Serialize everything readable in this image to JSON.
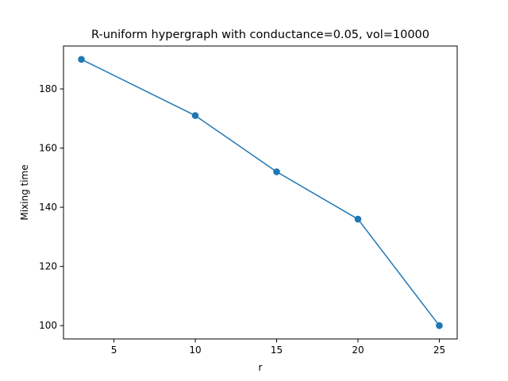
{
  "chart_data": {
    "type": "line",
    "title": "R-uniform hypergraph with conductance=0.05, vol=10000",
    "xlabel": "r",
    "ylabel": "Mixing time",
    "x": [
      3,
      10,
      15,
      20,
      25
    ],
    "series": [
      {
        "values": [
          190,
          171,
          152,
          136,
          100
        ]
      }
    ],
    "xlim": [
      1.9,
      26.1
    ],
    "ylim": [
      95.5,
      194.5
    ],
    "xticks": [
      5,
      10,
      15,
      20,
      25
    ],
    "xtick_labels": [
      "5",
      "10",
      "15",
      "20",
      "25"
    ],
    "yticks": [
      100,
      120,
      140,
      160,
      180
    ],
    "ytick_labels": [
      "100",
      "120",
      "140",
      "160",
      "180"
    ],
    "grid": false,
    "markers": "circle",
    "line_color": "#1f77b4"
  }
}
